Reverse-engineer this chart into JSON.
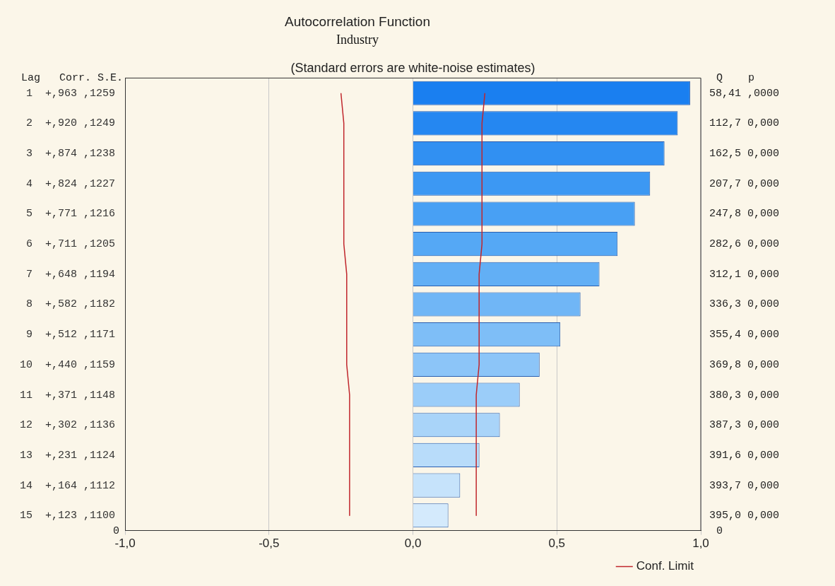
{
  "chart_data": {
    "type": "bar",
    "orientation": "horizontal",
    "title": "Autocorrelation Function",
    "subtitle": "Industry",
    "categories": [
      "1  +,963 ,1259",
      "2  +,920 ,1249",
      "3  +,874 ,1238",
      "4  +,824 ,1227",
      "5  +,771 ,1216",
      "6  +,711 ,1205",
      "7  +,648 ,1194",
      "8  +,582 ,1182",
      "9  +,512 ,1171",
      "10  +,440 ,1159",
      "11  +,371 ,1148",
      "12  +,302 ,1136",
      "13  +,231 ,1124",
      "14  +,164 ,1112",
      "15  +,123 ,1100"
    ],
    "series": [
      {
        "colors": [
          "#1a7ff0",
          "#2587f1",
          "#3190f2",
          "#3c98f3",
          "#48a0f4",
          "#55a8f5",
          "#62aff5",
          "#70b6f6",
          "#7ebef7",
          "#8cc5f8",
          "#9bcdf9",
          "#a9d4f9",
          "#b8dcfa",
          "#c6e3fb",
          "#d4eafc"
        ],
        "values": [
          0.963,
          0.92,
          0.874,
          0.824,
          0.771,
          0.711,
          0.648,
          0.582,
          0.512,
          0.44,
          0.371,
          0.302,
          0.231,
          0.164,
          0.123
        ]
      },
      {
        "type": "line",
        "name": "Conf. Limit",
        "color": "#c0262c",
        "values": [
          0.25,
          0.24,
          0.24,
          0.24,
          0.24,
          0.24,
          0.23,
          0.23,
          0.23,
          0.23,
          0.22,
          0.22,
          0.22,
          0.22,
          0.22
        ]
      },
      {
        "type": "line",
        "color": "#c0262c",
        "values": [
          -0.25,
          -0.24,
          -0.24,
          -0.24,
          -0.24,
          -0.24,
          -0.23,
          -0.23,
          -0.23,
          -0.23,
          -0.22,
          -0.22,
          -0.22,
          -0.22,
          -0.22
        ]
      }
    ],
    "xlim": [
      -1,
      1
    ],
    "xticks": [
      {
        "value": -1,
        "label": "-1,0"
      },
      {
        "value": -0.5,
        "label": "-0,5"
      },
      {
        "value": 0,
        "label": "0,0"
      },
      {
        "value": 0.5,
        "label": "0,5"
      },
      {
        "value": 1,
        "label": "1,0"
      }
    ],
    "grid": "x",
    "legend": "bottom right",
    "marker": "none",
    "line_style": "solid",
    "annotations": [
      "(Standard errors are white-noise estimates)",
      "Lag   Corr. S.E.",
      "Q    p",
      "0",
      "0",
      "58,41 ,0000",
      "112,7 0,000",
      "162,5 0,000",
      "207,7 0,000",
      "247,8 0,000",
      "282,6 0,000",
      "312,1 0,000",
      "336,3 0,000",
      "355,4 0,000",
      "369,8 0,000",
      "380,3 0,000",
      "387,3 0,000",
      "391,6 0,000",
      "393,7 0,000",
      "395,0 0,000"
    ]
  }
}
